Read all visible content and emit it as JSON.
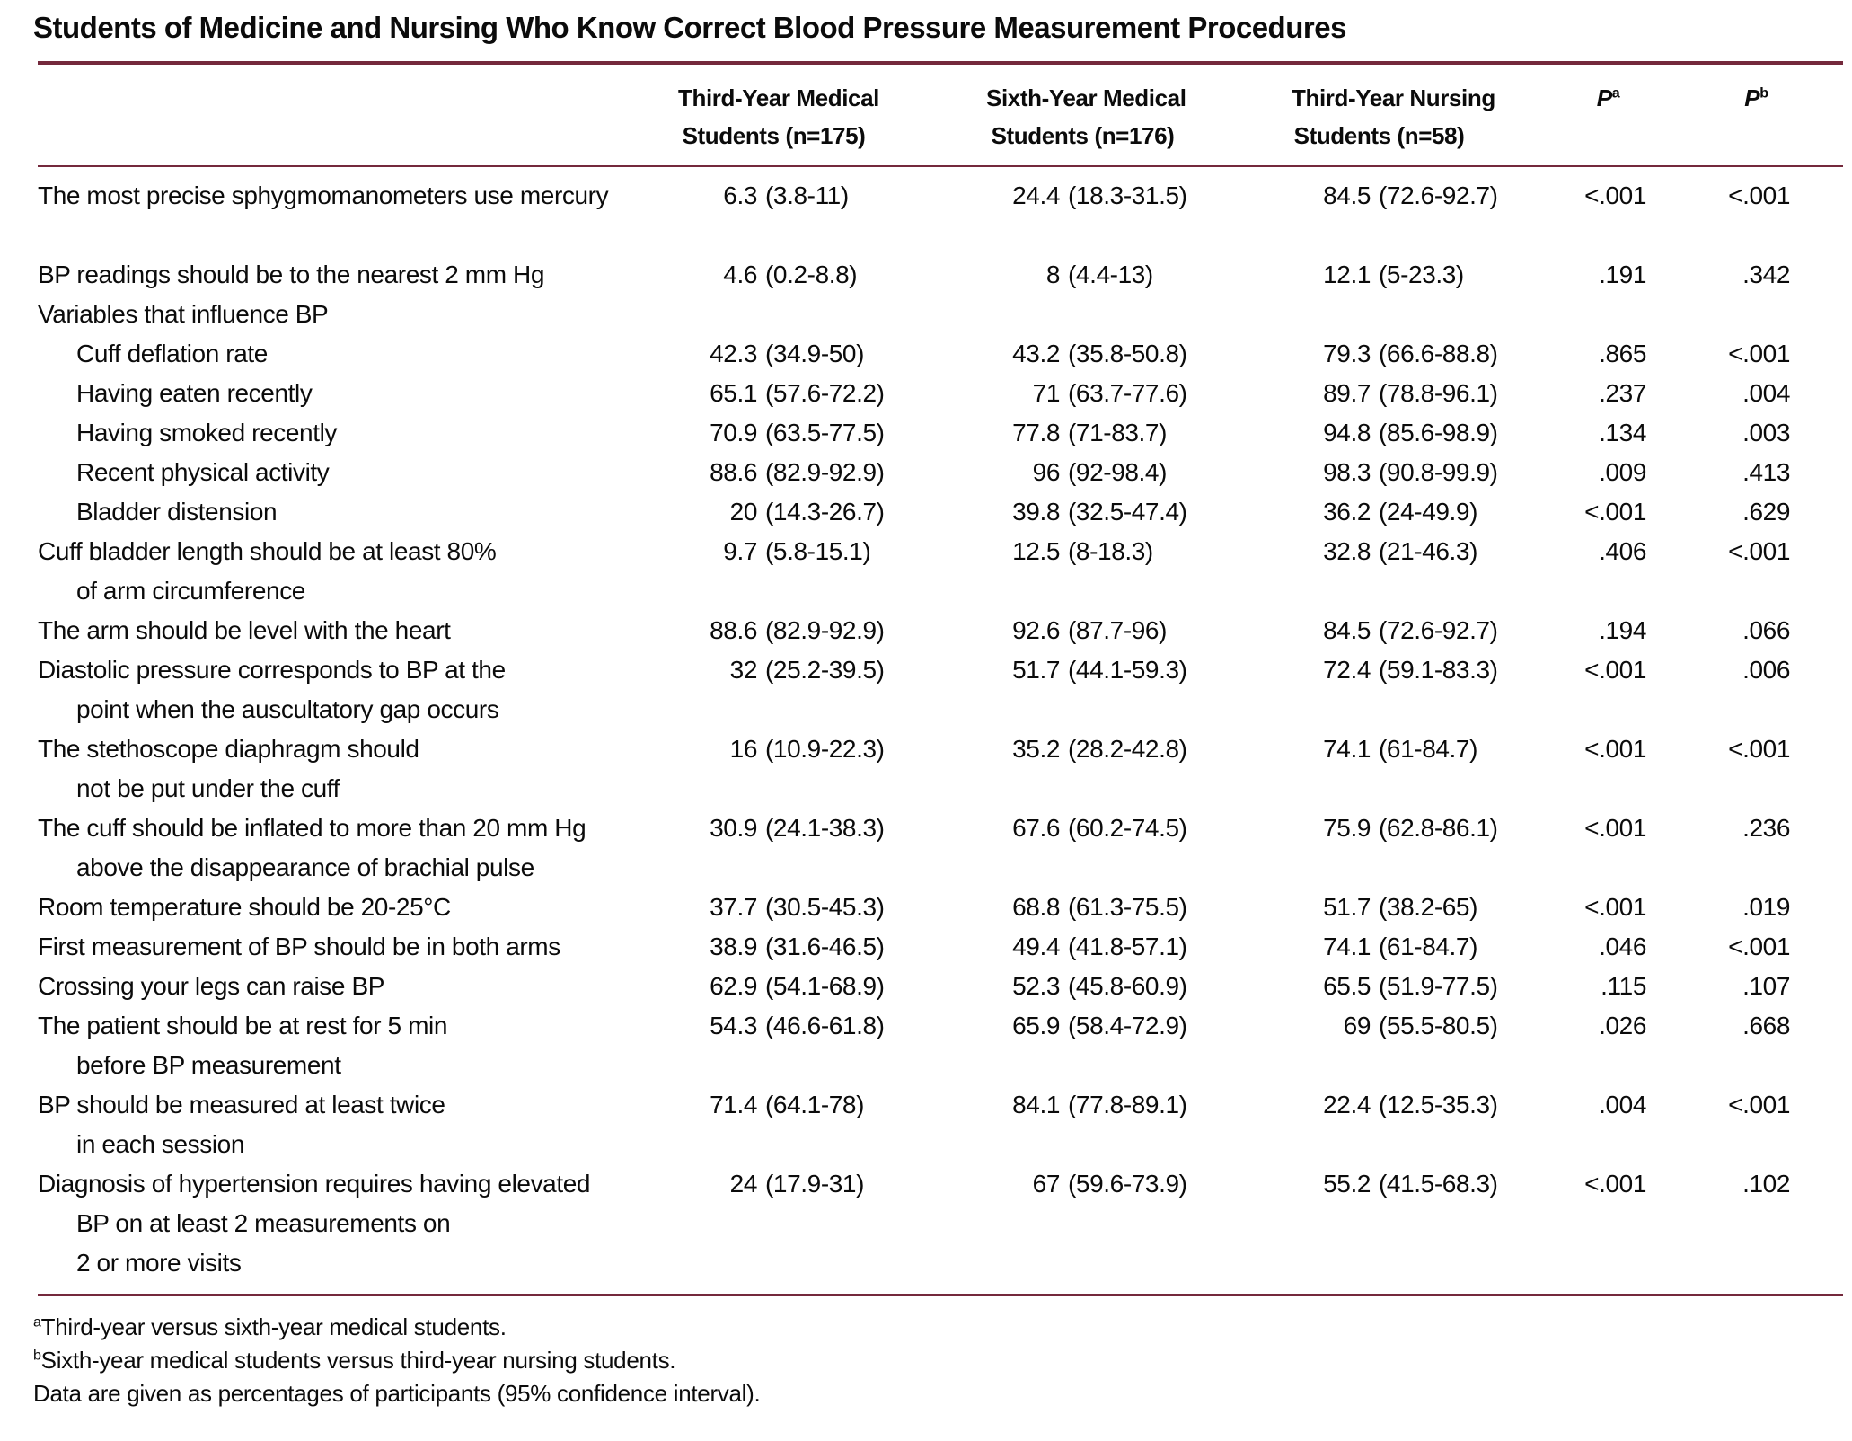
{
  "colors": {
    "rule": "#74293c",
    "text": "#0b0b0b",
    "background": "#ffffff"
  },
  "table": {
    "title": "Students of Medicine and Nursing Who Know Correct Blood Pressure Measurement Procedures",
    "columns": {
      "col1": {
        "line1": "Third-Year Medical",
        "line2": "Students (n=175)"
      },
      "col2": {
        "line1": "Sixth-Year Medical",
        "line2": "Students (n=176)"
      },
      "col3": {
        "line1": "Third-Year Nursing",
        "line2": "Students (n=58)"
      },
      "p_a": {
        "symbol": "P",
        "sup": "a"
      },
      "p_b": {
        "symbol": "P",
        "sup": "b"
      }
    },
    "rows": [
      {
        "lines": [
          "The most precise sphygmomanometers use mercury"
        ],
        "indent": 0,
        "c1": [
          "6.3",
          "(3.8-11)"
        ],
        "c2": [
          "24.4",
          "(18.3-31.5)"
        ],
        "c3": [
          "84.5",
          "(72.6-92.7)"
        ],
        "pa": "<.001",
        "pb": "<.001",
        "gap_after": true
      },
      {
        "lines": [
          "BP readings should be to the nearest 2 mm Hg"
        ],
        "indent": 0,
        "c1": [
          "4.6",
          "(0.2-8.8)"
        ],
        "c2": [
          "8",
          "(4.4-13)"
        ],
        "c3": [
          "12.1",
          "(5-23.3)"
        ],
        "pa": ".191",
        "pb": ".342",
        "gap_after": false
      },
      {
        "lines": [
          "Variables that influence BP"
        ],
        "indent": 0,
        "c1": null,
        "c2": null,
        "c3": null,
        "pa": "",
        "pb": "",
        "gap_after": false
      },
      {
        "lines": [
          "Cuff deflation rate"
        ],
        "indent": 1,
        "c1": [
          "42.3",
          "(34.9-50)"
        ],
        "c2": [
          "43.2",
          "(35.8-50.8)"
        ],
        "c3": [
          "79.3",
          "(66.6-88.8)"
        ],
        "pa": ".865",
        "pb": "<.001",
        "gap_after": false
      },
      {
        "lines": [
          "Having eaten recently"
        ],
        "indent": 1,
        "c1": [
          "65.1",
          "(57.6-72.2)"
        ],
        "c2": [
          "71",
          "(63.7-77.6)"
        ],
        "c3": [
          "89.7",
          "(78.8-96.1)"
        ],
        "pa": ".237",
        "pb": ".004",
        "gap_after": false
      },
      {
        "lines": [
          "Having smoked recently"
        ],
        "indent": 1,
        "c1": [
          "70.9",
          "(63.5-77.5)"
        ],
        "c2": [
          "77.8",
          "(71-83.7)"
        ],
        "c3": [
          "94.8",
          "(85.6-98.9)"
        ],
        "pa": ".134",
        "pb": ".003",
        "gap_after": false
      },
      {
        "lines": [
          "Recent physical activity"
        ],
        "indent": 1,
        "c1": [
          "88.6",
          "(82.9-92.9)"
        ],
        "c2": [
          "96",
          "(92-98.4)"
        ],
        "c3": [
          "98.3",
          "(90.8-99.9)"
        ],
        "pa": ".009",
        "pb": ".413",
        "gap_after": false
      },
      {
        "lines": [
          "Bladder distension"
        ],
        "indent": 1,
        "c1": [
          "20",
          "(14.3-26.7)"
        ],
        "c2": [
          "39.8",
          "(32.5-47.4)"
        ],
        "c3": [
          "36.2",
          "(24-49.9)"
        ],
        "pa": "<.001",
        "pb": ".629",
        "gap_after": false
      },
      {
        "lines": [
          "Cuff bladder length should be at least 80%",
          "of arm circumference"
        ],
        "indent": 0,
        "c1": [
          "9.7",
          "(5.8-15.1)"
        ],
        "c2": [
          "12.5",
          "(8-18.3)"
        ],
        "c3": [
          "32.8",
          "(21-46.3)"
        ],
        "pa": ".406",
        "pb": "<.001",
        "gap_after": false
      },
      {
        "lines": [
          "The arm should be level with the heart"
        ],
        "indent": 0,
        "c1": [
          "88.6",
          "(82.9-92.9)"
        ],
        "c2": [
          "92.6",
          "(87.7-96)"
        ],
        "c3": [
          "84.5",
          "(72.6-92.7)"
        ],
        "pa": ".194",
        "pb": ".066",
        "gap_after": false
      },
      {
        "lines": [
          "Diastolic pressure corresponds to BP at the",
          "point when the auscultatory gap occurs"
        ],
        "indent": 0,
        "c1": [
          "32",
          "(25.2-39.5)"
        ],
        "c2": [
          "51.7",
          "(44.1-59.3)"
        ],
        "c3": [
          "72.4",
          "(59.1-83.3)"
        ],
        "pa": "<.001",
        "pb": ".006",
        "gap_after": false
      },
      {
        "lines": [
          "The stethoscope diaphragm should",
          "not be put under the cuff"
        ],
        "indent": 0,
        "c1": [
          "16",
          "(10.9-22.3)"
        ],
        "c2": [
          "35.2",
          "(28.2-42.8)"
        ],
        "c3": [
          "74.1",
          "(61-84.7)"
        ],
        "pa": "<.001",
        "pb": "<.001",
        "gap_after": false
      },
      {
        "lines": [
          "The cuff should be inflated to more than 20 mm Hg",
          "above the disappearance of brachial pulse"
        ],
        "indent": 0,
        "c1": [
          "30.9",
          "(24.1-38.3)"
        ],
        "c2": [
          "67.6",
          "(60.2-74.5)"
        ],
        "c3": [
          "75.9",
          "(62.8-86.1)"
        ],
        "pa": "<.001",
        "pb": ".236",
        "gap_after": false
      },
      {
        "lines": [
          "Room temperature should be 20-25°C"
        ],
        "indent": 0,
        "c1": [
          "37.7",
          "(30.5-45.3)"
        ],
        "c2": [
          "68.8",
          "(61.3-75.5)"
        ],
        "c3": [
          "51.7",
          "(38.2-65)"
        ],
        "pa": "<.001",
        "pb": ".019",
        "gap_after": false
      },
      {
        "lines": [
          "First measurement of BP should be in both arms"
        ],
        "indent": 0,
        "c1": [
          "38.9",
          "(31.6-46.5)"
        ],
        "c2": [
          "49.4",
          "(41.8-57.1)"
        ],
        "c3": [
          "74.1",
          "(61-84.7)"
        ],
        "pa": ".046",
        "pb": "<.001",
        "gap_after": false
      },
      {
        "lines": [
          "Crossing your legs can raise BP"
        ],
        "indent": 0,
        "c1": [
          "62.9",
          "(54.1-68.9)"
        ],
        "c2": [
          "52.3",
          "(45.8-60.9)"
        ],
        "c3": [
          "65.5",
          "(51.9-77.5)"
        ],
        "pa": ".115",
        "pb": ".107",
        "gap_after": false
      },
      {
        "lines": [
          "The patient should be at rest for 5 min",
          "before BP measurement"
        ],
        "indent": 0,
        "c1": [
          "54.3",
          "(46.6-61.8)"
        ],
        "c2": [
          "65.9",
          "(58.4-72.9)"
        ],
        "c3": [
          "69",
          "(55.5-80.5)"
        ],
        "pa": ".026",
        "pb": ".668",
        "gap_after": false
      },
      {
        "lines": [
          "BP should be measured at least twice",
          "in each session"
        ],
        "indent": 0,
        "c1": [
          "71.4",
          "(64.1-78)"
        ],
        "c2": [
          "84.1",
          "(77.8-89.1)"
        ],
        "c3": [
          "22.4",
          "(12.5-35.3)"
        ],
        "pa": ".004",
        "pb": "<.001",
        "gap_after": false
      },
      {
        "lines": [
          "Diagnosis of hypertension requires having elevated",
          "BP on at least 2 measurements on",
          "2 or more visits"
        ],
        "indent": 0,
        "c1": [
          "24",
          "(17.9-31)"
        ],
        "c2": [
          "67",
          "(59.6-73.9)"
        ],
        "c3": [
          "55.2",
          "(41.5-68.3)"
        ],
        "pa": "<.001",
        "pb": ".102",
        "gap_after": false
      }
    ],
    "footnotes": [
      {
        "sup": "a",
        "text": "Third-year versus sixth-year medical students."
      },
      {
        "sup": "b",
        "text": "Sixth-year medical students versus third-year nursing students."
      },
      {
        "sup": "",
        "text": "Data are given as percentages of participants (95% confidence interval)."
      }
    ]
  }
}
